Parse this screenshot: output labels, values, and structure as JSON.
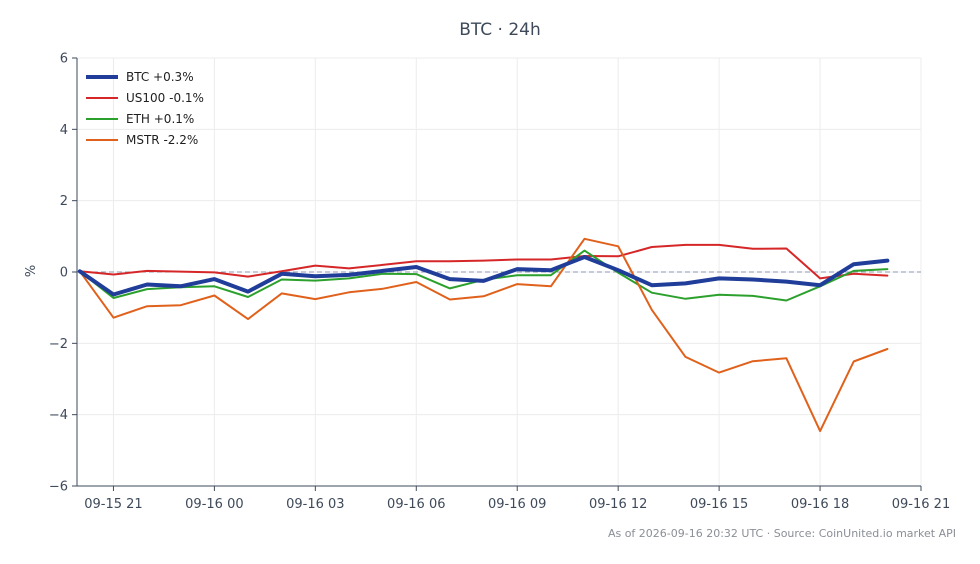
{
  "chart_data": {
    "type": "line",
    "title": "BTC · 24h",
    "xlabel": "",
    "ylabel": "%",
    "ylim": [
      -6,
      6
    ],
    "yticks": [
      -6,
      -4,
      -2,
      0,
      2,
      4,
      6
    ],
    "ytick_labels": [
      "−6",
      "−4",
      "−2",
      "0",
      "2",
      "4",
      "6"
    ],
    "xlim": [
      "2026-09-15 19:55",
      "2026-09-16 21:00"
    ],
    "xticks": [
      "2026-09-15 21:00",
      "2026-09-16 00:00",
      "2026-09-16 03:00",
      "2026-09-16 06:00",
      "2026-09-16 09:00",
      "2026-09-16 12:00",
      "2026-09-16 15:00",
      "2026-09-16 18:00",
      "2026-09-16 21:00"
    ],
    "xtick_labels": [
      "09-15 21",
      "09-16 00",
      "09-16 03",
      "09-16 06",
      "09-16 09",
      "09-16 12",
      "09-16 15",
      "09-16 18",
      "09-16 21"
    ],
    "x": [
      "2026-09-15 20:00",
      "2026-09-15 21:00",
      "2026-09-15 22:00",
      "2026-09-15 23:00",
      "2026-09-16 00:00",
      "2026-09-16 01:00",
      "2026-09-16 02:00",
      "2026-09-16 03:00",
      "2026-09-16 04:00",
      "2026-09-16 05:00",
      "2026-09-16 06:00",
      "2026-09-16 07:00",
      "2026-09-16 08:00",
      "2026-09-16 09:00",
      "2026-09-16 10:00",
      "2026-09-16 11:00",
      "2026-09-16 12:00",
      "2026-09-16 13:00",
      "2026-09-16 14:00",
      "2026-09-16 15:00",
      "2026-09-16 16:00",
      "2026-09-16 17:00",
      "2026-09-16 18:00",
      "2026-09-16 19:00",
      "2026-09-16 20:00"
    ],
    "zero_line": true,
    "grid": true,
    "legend_position": "top-left",
    "series": [
      {
        "name": "BTC +0.3%",
        "color": "#1f3d99",
        "width": 4,
        "values": [
          0.02,
          -0.63,
          -0.35,
          -0.4,
          -0.2,
          -0.55,
          -0.05,
          -0.12,
          -0.08,
          0.03,
          0.14,
          -0.2,
          -0.25,
          0.08,
          0.05,
          0.42,
          0.05,
          -0.37,
          -0.32,
          -0.18,
          -0.21,
          -0.27,
          -0.37,
          0.22,
          0.32
        ]
      },
      {
        "name": "US100 -0.1%",
        "color": "#d62728",
        "width": 2,
        "values": [
          0.02,
          -0.07,
          0.03,
          0.01,
          -0.01,
          -0.13,
          0.02,
          0.18,
          0.1,
          0.2,
          0.3,
          0.3,
          0.32,
          0.35,
          0.35,
          0.45,
          0.44,
          0.7,
          0.76,
          0.76,
          0.65,
          0.66,
          -0.18,
          -0.05,
          -0.1
        ]
      },
      {
        "name": "ETH +0.1%",
        "color": "#2ca02c",
        "width": 2,
        "values": [
          0.02,
          -0.73,
          -0.48,
          -0.43,
          -0.4,
          -0.7,
          -0.21,
          -0.24,
          -0.18,
          -0.05,
          -0.06,
          -0.46,
          -0.22,
          -0.09,
          -0.09,
          0.6,
          -0.02,
          -0.58,
          -0.75,
          -0.64,
          -0.67,
          -0.8,
          -0.4,
          0.03,
          0.08
        ]
      },
      {
        "name": "MSTR -2.2%",
        "color": "#e0611b",
        "width": 2,
        "values": [
          0.02,
          -1.28,
          -0.96,
          -0.93,
          -0.66,
          -1.32,
          -0.6,
          -0.76,
          -0.57,
          -0.47,
          -0.28,
          -0.77,
          -0.68,
          -0.34,
          -0.4,
          0.93,
          0.72,
          -1.06,
          -2.38,
          -2.82,
          -2.5,
          -2.42,
          -4.46,
          -2.51,
          -2.16
        ]
      }
    ]
  },
  "footer": "As of 2026-09-16 20:32 UTC · Source: CoinUnited.io market API"
}
